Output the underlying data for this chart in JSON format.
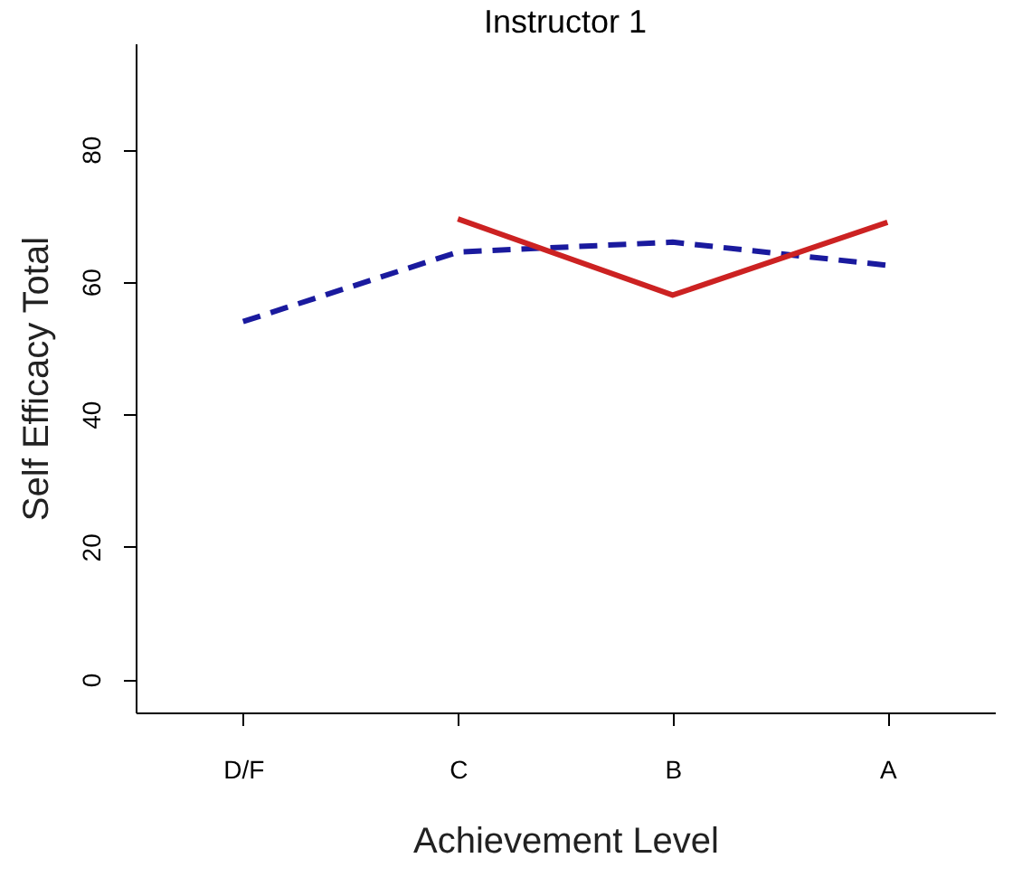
{
  "chart_data": {
    "type": "line",
    "title": "Instructor 1",
    "xlabel": "Achievement Level",
    "ylabel": "Self Efficacy Total",
    "categories": [
      "D/F",
      "C",
      "B",
      "A"
    ],
    "series": [
      {
        "color": "#1a1a9e",
        "line_style": "dashed",
        "values": [
          54,
          64.5,
          66,
          62.5
        ]
      },
      {
        "color": "#cc2222",
        "line_style": "solid",
        "values": [
          null,
          69.5,
          58,
          69
        ]
      }
    ],
    "ylim": [
      -5,
      96
    ],
    "yticks": [
      0,
      20,
      40,
      60,
      80
    ],
    "grid": false
  }
}
